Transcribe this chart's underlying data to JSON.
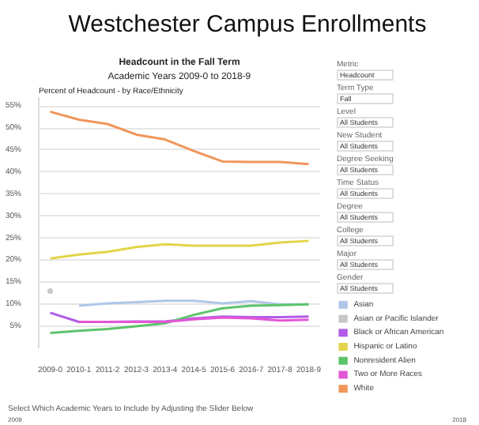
{
  "chart_data": {
    "type": "line",
    "title": "Westchester Campus Enrollments",
    "subtitle": "Headcount in the Fall Term",
    "ylabel": "Percent of Headcount - by Race/Ethnicity",
    "annotations": [
      "Academic Years 2009-0 to 2018-9",
      "Metric",
      "Headcount",
      "Term Type",
      "Fall",
      "Level",
      "All Students",
      "New Student",
      "All Students",
      "Degree Seeking",
      "All Students",
      "Time Status",
      "All Students",
      "Degree",
      "All Students",
      "College",
      "All Students",
      "Major",
      "All Students",
      "Gender",
      "All Students",
      "Select Which Academic Years to Include by Adjusting the Slider Below",
      "2009",
      "2018"
    ],
    "categories": [
      "2009-0",
      "2010-1",
      "2011-2",
      "2012-3",
      "2013-4",
      "2014-5",
      "2015-6",
      "2016-7",
      "2017-8",
      "2018-9"
    ],
    "series": [
      {
        "name": "Asian",
        "color": "#aec7e8",
        "values": [
          null,
          9.7,
          10.2,
          10.5,
          10.8,
          10.8,
          10.2,
          10.7,
          10.0,
          10.0
        ]
      },
      {
        "name": "Asian or Pacific Islander",
        "color": "#c7c7c7",
        "type": "scatter",
        "values": [
          13.0,
          null,
          null,
          null,
          null,
          null,
          null,
          null,
          null,
          null
        ]
      },
      {
        "name": "Black or African American",
        "color": "#b05ce8",
        "values": [
          8.1,
          6.0,
          6.0,
          6.1,
          6.1,
          6.8,
          7.2,
          7.1,
          7.1,
          7.2
        ]
      },
      {
        "name": "Hispanic or Latino",
        "color": "#e2d44a",
        "values": [
          20.4,
          21.3,
          21.9,
          23.0,
          23.6,
          23.3,
          23.3,
          23.3,
          24.0,
          24.4
        ]
      },
      {
        "name": "Nonresident Alien",
        "color": "#5cc46a",
        "values": [
          3.5,
          4.0,
          4.4,
          5.0,
          5.7,
          7.6,
          9.1,
          9.7,
          9.8,
          10.0
        ]
      },
      {
        "name": "Two or More Races",
        "color": "#e256d6",
        "values": [
          null,
          6.0,
          6.0,
          6.0,
          6.0,
          6.6,
          7.0,
          6.8,
          6.3,
          6.5
        ]
      },
      {
        "name": "White",
        "color": "#f0965a",
        "values": [
          53.7,
          51.9,
          50.9,
          48.5,
          47.4,
          44.8,
          42.4,
          42.3,
          42.3,
          41.8
        ]
      }
    ],
    "ylim": [
      0,
      57
    ],
    "yticks": [
      {
        "value": 5,
        "label": "5%"
      },
      {
        "value": 10,
        "label": "10%"
      },
      {
        "value": 15,
        "label": "15%"
      },
      {
        "value": 20,
        "label": "20%"
      },
      {
        "value": 25,
        "label": "25%"
      },
      {
        "value": 30,
        "label": "30%"
      },
      {
        "value": 35,
        "label": "35%"
      },
      {
        "value": 40,
        "label": "40%"
      },
      {
        "value": 45,
        "label": "45%"
      },
      {
        "value": 50,
        "label": "50%"
      },
      {
        "value": 55,
        "label": "55%"
      }
    ],
    "grid": "y",
    "legend": "right",
    "marker": "none",
    "line_style": "solid"
  }
}
